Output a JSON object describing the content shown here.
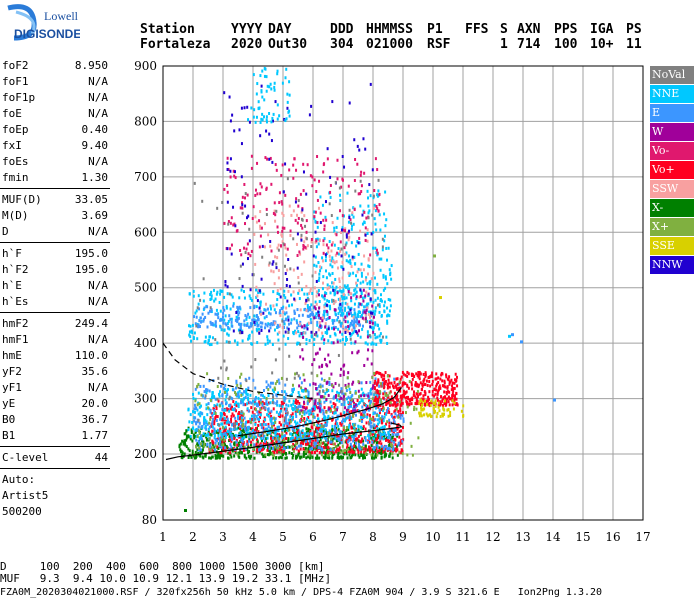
{
  "logo": {
    "line1": "Lowell",
    "line2": "DIGISONDE"
  },
  "header": {
    "labels": [
      "Station",
      "YYYY",
      "DAY",
      "DDD",
      "HHMMSS",
      "P1",
      "FFS",
      "S",
      "AXN",
      "PPS",
      "IGA",
      "PS"
    ],
    "values": [
      "Fortaleza",
      "2020",
      "Out30",
      "304",
      "021000",
      "RSF",
      "",
      "1",
      "714",
      "100",
      "10+",
      "11"
    ]
  },
  "params": {
    "group1": [
      {
        "k": "foF2",
        "v": "8.950"
      },
      {
        "k": "foF1",
        "v": "N/A"
      },
      {
        "k": "foF1p",
        "v": "N/A"
      },
      {
        "k": "foE",
        "v": "N/A"
      },
      {
        "k": "foEp",
        "v": "0.40"
      },
      {
        "k": "fxI",
        "v": "9.40"
      },
      {
        "k": "foEs",
        "v": "N/A"
      },
      {
        "k": "fmin",
        "v": "1.30"
      }
    ],
    "group2": [
      {
        "k": "MUF(D)",
        "v": "33.05"
      },
      {
        "k": "M(D)",
        "v": "3.69"
      },
      {
        "k": "D",
        "v": "N/A"
      }
    ],
    "group3": [
      {
        "k": "h`F",
        "v": "195.0"
      },
      {
        "k": "h`F2",
        "v": "195.0"
      },
      {
        "k": "h`E",
        "v": "N/A"
      },
      {
        "k": "h`Es",
        "v": "N/A"
      }
    ],
    "group4": [
      {
        "k": "hmF2",
        "v": "249.4"
      },
      {
        "k": "hmF1",
        "v": "N/A"
      },
      {
        "k": "hmE",
        "v": "110.0"
      },
      {
        "k": "yF2",
        "v": "35.6"
      },
      {
        "k": "yF1",
        "v": "N/A"
      },
      {
        "k": "yE",
        "v": "20.0"
      },
      {
        "k": "B0",
        "v": "36.7"
      },
      {
        "k": "B1",
        "v": "1.77"
      }
    ],
    "clevel": {
      "k": "C-level",
      "v": "44"
    },
    "auto": [
      "Auto:",
      "Artist5",
      "500200"
    ]
  },
  "legend": [
    {
      "label": "NoVal",
      "color": "#808080"
    },
    {
      "label": "NNE",
      "color": "#00c8ff"
    },
    {
      "label": "E",
      "color": "#3c96ff"
    },
    {
      "label": "W",
      "color": "#a0009a"
    },
    {
      "label": "Vo-",
      "color": "#e0186e"
    },
    {
      "label": "Vo+",
      "color": "#ff0020"
    },
    {
      "label": "SSW",
      "color": "#f8a0a0"
    },
    {
      "label": "X-",
      "color": "#008000"
    },
    {
      "label": "X+",
      "color": "#80b040"
    },
    {
      "label": "SSE",
      "color": "#d8d000"
    },
    {
      "label": "NNW",
      "color": "#2000d0"
    }
  ],
  "bottom": {
    "d_line": "D     100  200  400  600  800 1000 1500 3000 [km]",
    "muf_line": "MUF   9.3  9.4 10.0 10.9 12.1 13.9 19.2 33.1 [MHz]",
    "footer": "FZA0M_2020304021000.RSF / 320fx256h 50 kHz 5.0 km / DPS-4 FZA0M 904 / 3.9 S 321.6 E   Ion2Png 1.3.20"
  },
  "chart_data": {
    "type": "scatter",
    "xlabel": "",
    "ylabel": "",
    "xlim": [
      1,
      17
    ],
    "ylim": [
      80,
      900
    ],
    "x_ticks": [
      1,
      2,
      3,
      4,
      5,
      6,
      7,
      8,
      9,
      10,
      11,
      12,
      13,
      14,
      15,
      16,
      17
    ],
    "y_ticks": [
      80,
      200,
      300,
      400,
      500,
      600,
      700,
      800,
      900
    ],
    "grid": true,
    "trace_curves": [
      {
        "name": "profile",
        "style": "solid",
        "x": [
          1.1,
          1.5,
          2.0,
          3.0,
          4.0,
          5.0,
          6.0,
          7.0,
          8.0,
          8.6,
          8.95,
          8.9,
          8.6
        ],
        "y": [
          190,
          195,
          198,
          205,
          212,
          220,
          228,
          236,
          242,
          246,
          249,
          252,
          256
        ]
      },
      {
        "name": "profile-bottom",
        "style": "solid",
        "x": [
          3.5,
          4.5,
          5.5,
          6.5,
          7.2,
          7.8,
          8.3,
          8.7,
          8.95
        ],
        "y": [
          233,
          241,
          250,
          262,
          272,
          281,
          290,
          302,
          320
        ]
      },
      {
        "name": "ordinary-fit",
        "style": "dashed",
        "x": [
          1.0,
          1.4,
          2.0,
          3.0,
          4.0,
          5.0,
          5.5,
          6.0
        ],
        "y": [
          400,
          370,
          345,
          326,
          313,
          306,
          303,
          300
        ]
      }
    ],
    "echo_regions": [
      {
        "mode": "X-",
        "x": [
          1.5,
          8.8
        ],
        "y": [
          195,
          250
        ],
        "n": 700
      },
      {
        "mode": "Vo+",
        "x": [
          2.5,
          9.0
        ],
        "y": [
          205,
          300
        ],
        "n": 650
      },
      {
        "mode": "NNE",
        "x": [
          1.8,
          8.5
        ],
        "y": [
          230,
          320
        ],
        "n": 500
      },
      {
        "mode": "E",
        "x": [
          2.0,
          9.0
        ],
        "y": [
          210,
          340
        ],
        "n": 500
      },
      {
        "mode": "Vo+",
        "x": [
          8.0,
          10.8
        ],
        "y": [
          290,
          350
        ],
        "n": 380
      },
      {
        "mode": "SSE",
        "x": [
          9.5,
          11.0
        ],
        "y": [
          270,
          300
        ],
        "n": 60
      },
      {
        "mode": "NNE",
        "x": [
          1.8,
          8.5
        ],
        "y": [
          400,
          500
        ],
        "n": 350
      },
      {
        "mode": "E",
        "x": [
          2.0,
          8.0
        ],
        "y": [
          430,
          470
        ],
        "n": 220
      },
      {
        "mode": "NNE",
        "x": [
          6.0,
          8.6
        ],
        "y": [
          450,
          680
        ],
        "n": 260
      },
      {
        "mode": "SSW",
        "x": [
          4.0,
          8.0
        ],
        "y": [
          420,
          650
        ],
        "n": 180
      },
      {
        "mode": "W",
        "x": [
          5.5,
          8.0
        ],
        "y": [
          280,
          500
        ],
        "n": 150
      },
      {
        "mode": "Vo-",
        "x": [
          3.0,
          8.2
        ],
        "y": [
          560,
          740
        ],
        "n": 180
      },
      {
        "mode": "NNW",
        "x": [
          3.0,
          8.0
        ],
        "y": [
          420,
          870
        ],
        "n": 140
      },
      {
        "mode": "NNE",
        "x": [
          3.8,
          5.2
        ],
        "y": [
          800,
          900
        ],
        "n": 60
      },
      {
        "mode": "NoVal",
        "x": [
          2.0,
          8.5
        ],
        "y": [
          250,
          700
        ],
        "n": 120
      },
      {
        "mode": "X+",
        "x": [
          2.0,
          9.5
        ],
        "y": [
          200,
          350
        ],
        "n": 200
      }
    ],
    "isolated_echoes": [
      {
        "mode": "NNE",
        "x": 12.5,
        "y": 415
      },
      {
        "mode": "E",
        "x": 12.6,
        "y": 418
      },
      {
        "mode": "E",
        "x": 12.9,
        "y": 405
      },
      {
        "mode": "E",
        "x": 14.0,
        "y": 300
      },
      {
        "mode": "X-",
        "x": 1.7,
        "y": 100
      },
      {
        "mode": "SSE",
        "x": 10.2,
        "y": 485
      },
      {
        "mode": "X+",
        "x": 10.0,
        "y": 560
      }
    ]
  }
}
